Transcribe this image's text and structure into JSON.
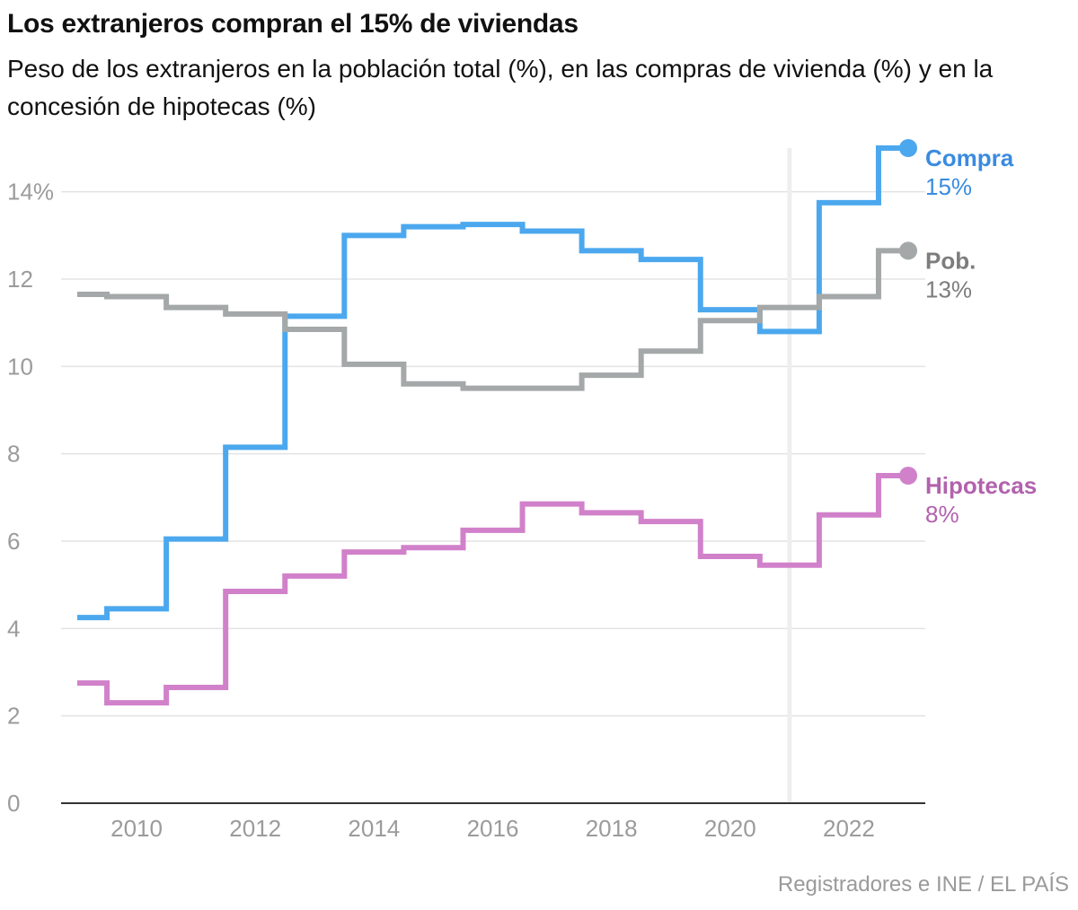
{
  "title": "Los extranjeros compran el 15% de viviendas",
  "subtitle": "Peso de los extranjeros en la población total (%), en las compras de vivienda (%) y en la concesión de hipotecas (%)",
  "source": "Registradores e INE / EL PAÍS",
  "chart_data": {
    "type": "line",
    "step": true,
    "title": "Los extranjeros compran el 15% de viviendas",
    "xlabel": "",
    "ylabel": "",
    "xlim": [
      2008.9,
      2023.4
    ],
    "ylim": [
      0,
      15
    ],
    "x_ticks": [
      2010,
      2012,
      2014,
      2016,
      2018,
      2020,
      2022
    ],
    "x_tick_labels": [
      "2010",
      "2012",
      "2014",
      "2016",
      "2018",
      "2020",
      "2022"
    ],
    "y_ticks": [
      0,
      2,
      4,
      6,
      8,
      10,
      12,
      14
    ],
    "y_tick_labels": [
      "0",
      "2",
      "4",
      "6",
      "8",
      "10",
      "12",
      "14%"
    ],
    "grid": true,
    "reference_line_x": 2021,
    "legend": "end-labels",
    "x": [
      2009,
      2009.5,
      2010,
      2010.5,
      2011,
      2011.5,
      2012,
      2012.5,
      2013,
      2013.5,
      2014,
      2014.5,
      2015,
      2015.5,
      2016,
      2016.5,
      2017,
      2017.5,
      2018,
      2018.5,
      2019,
      2019.5,
      2020,
      2020.5,
      2021,
      2021.5,
      2022,
      2022.5,
      2023
    ],
    "series": [
      {
        "name": "Compra",
        "end_label": "15%",
        "color": "#4ca8ee",
        "label_color": "#3a8be0",
        "values": [
          4.25,
          4.45,
          4.45,
          6.05,
          6.05,
          8.15,
          8.15,
          11.15,
          11.15,
          13.0,
          13.0,
          13.2,
          13.2,
          13.25,
          13.25,
          13.1,
          13.1,
          12.65,
          12.65,
          12.45,
          12.45,
          11.3,
          11.3,
          10.8,
          10.8,
          13.75,
          13.75,
          15.0,
          15.0
        ]
      },
      {
        "name": "Pob.",
        "end_label": "13%",
        "color": "#a4a8a8",
        "label_color": "#7d7d7d",
        "values": [
          11.65,
          11.6,
          11.6,
          11.35,
          11.35,
          11.2,
          11.2,
          10.85,
          10.85,
          10.05,
          10.05,
          9.6,
          9.6,
          9.5,
          9.5,
          9.5,
          9.5,
          9.8,
          9.8,
          10.35,
          10.35,
          11.05,
          11.05,
          11.35,
          11.35,
          11.6,
          11.6,
          12.65,
          12.65
        ]
      },
      {
        "name": "Hipotecas",
        "end_label": "8%",
        "color": "#d181ca",
        "label_color": "#b262ad",
        "values": [
          2.75,
          2.3,
          2.3,
          2.65,
          2.65,
          4.85,
          4.85,
          5.2,
          5.2,
          5.75,
          5.75,
          5.85,
          5.85,
          6.25,
          6.25,
          6.85,
          6.85,
          6.65,
          6.65,
          6.45,
          6.45,
          5.65,
          5.65,
          5.45,
          5.45,
          6.6,
          6.6,
          7.5,
          7.5
        ]
      }
    ]
  }
}
